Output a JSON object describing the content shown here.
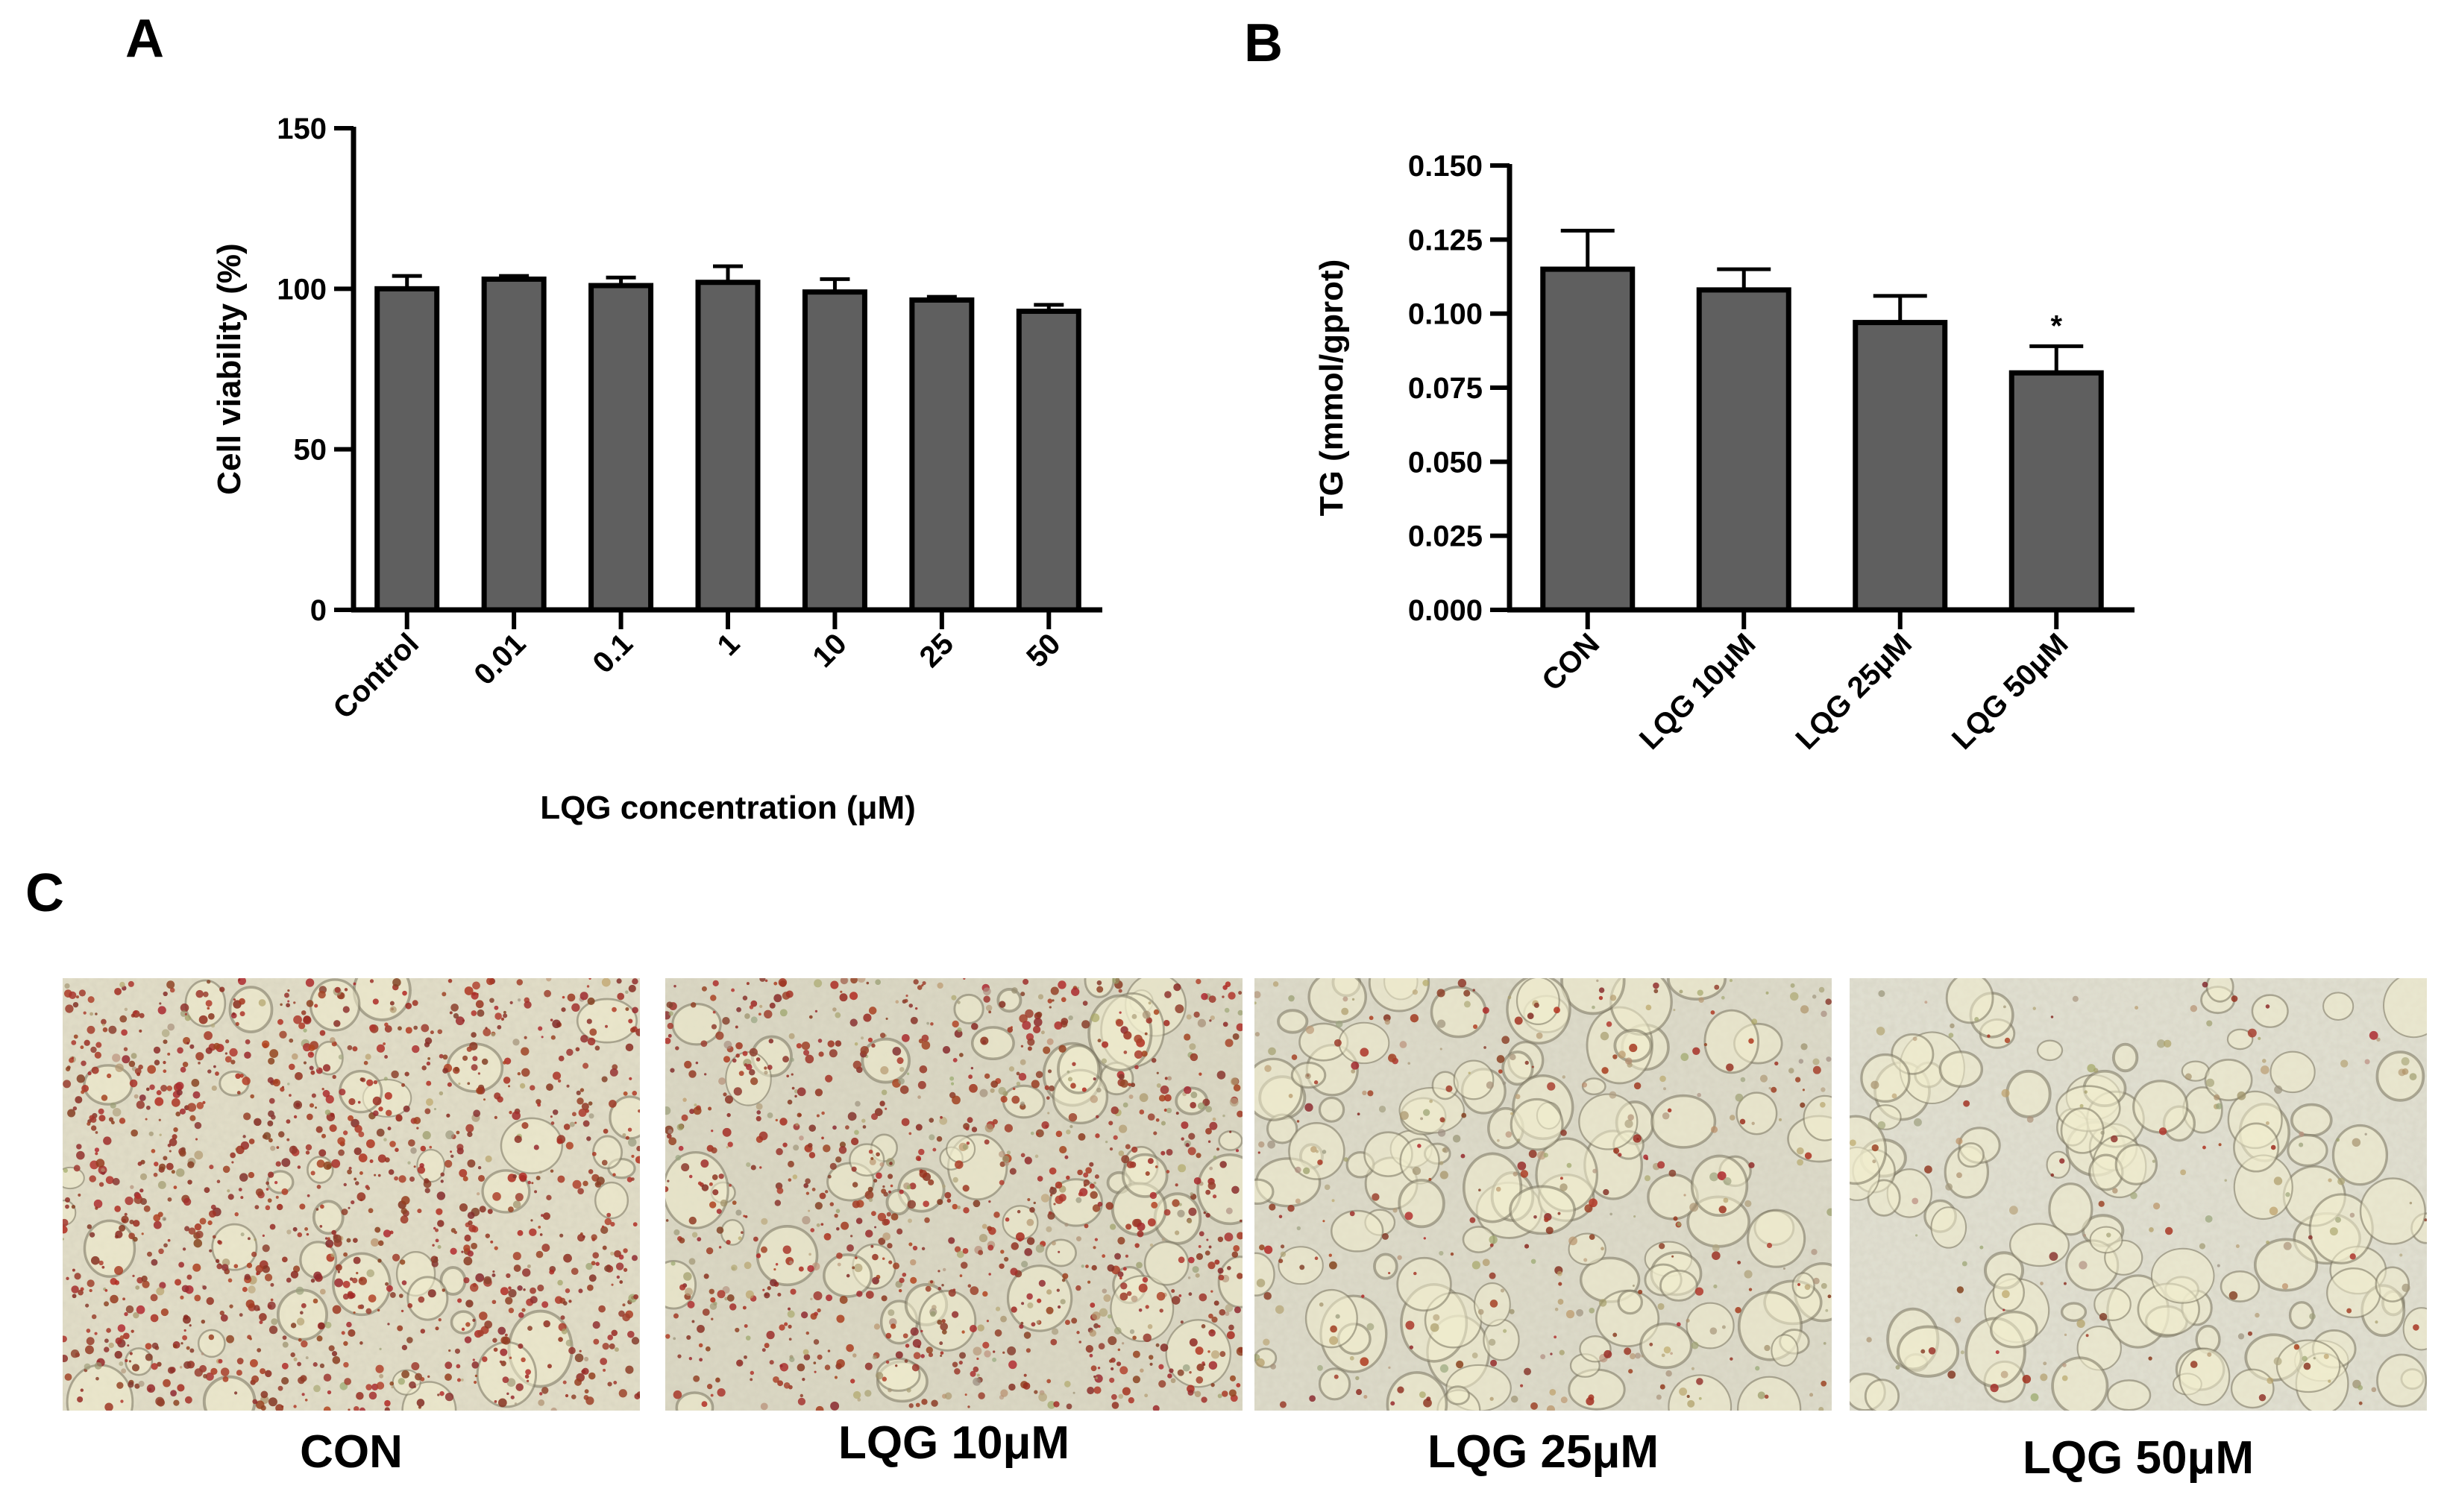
{
  "panels": {
    "A": "A",
    "B": "B",
    "C": "C"
  },
  "chart_data": [
    {
      "type": "bar",
      "panel": "A",
      "categories": [
        "Control",
        "0.01",
        "0.1",
        "1",
        "10",
        "25",
        "50"
      ],
      "values": [
        100,
        103,
        101,
        102,
        99,
        96.5,
        93
      ],
      "errors": [
        4,
        1,
        2.5,
        5,
        4,
        1,
        2
      ],
      "xlabel": "LQG concentration (μM)",
      "ylabel": "Cell viability (%)",
      "ylim": [
        0,
        150
      ],
      "yticks": [
        "0",
        "50",
        "100",
        "150"
      ],
      "bar_color": "#5f5f5f"
    },
    {
      "type": "bar",
      "panel": "B",
      "categories": [
        "CON",
        "LQG 10μM",
        "LQG 25μM",
        "LQG 50μM"
      ],
      "values": [
        0.115,
        0.108,
        0.097,
        0.08
      ],
      "errors": [
        0.013,
        0.007,
        0.009,
        0.009
      ],
      "significance": [
        "",
        "",
        "",
        "*"
      ],
      "xlabel": "",
      "ylabel": "TG (mmol/gprot)",
      "ylim": [
        0,
        0.15
      ],
      "yticks": [
        "0.000",
        "0.025",
        "0.050",
        "0.075",
        "0.100",
        "0.125",
        "0.150"
      ],
      "bar_color": "#5f5f5f"
    }
  ],
  "micrographs": {
    "labels": [
      "CON",
      "LQG 10μM",
      "LQG 25μM",
      "LQG 50μM"
    ]
  }
}
